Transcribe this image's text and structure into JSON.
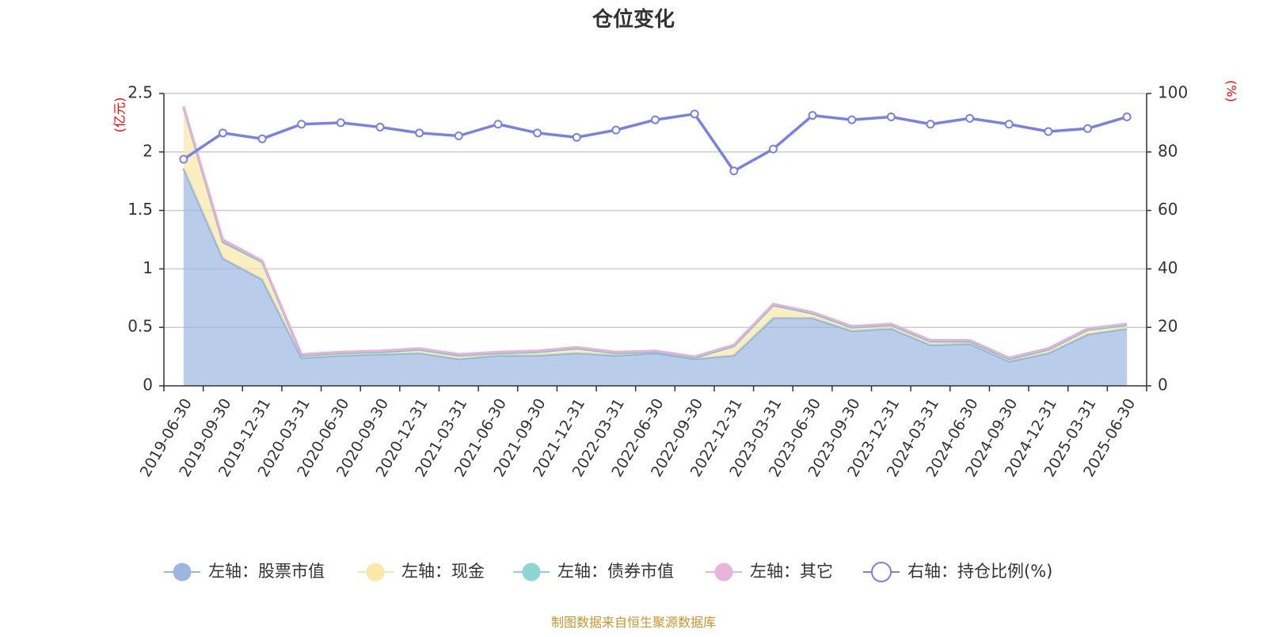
{
  "chart_data": {
    "type": "area",
    "title": "仓位变化",
    "left_axis_unit": "(亿元)",
    "right_axis_unit": "(%)",
    "left_ylim": [
      0,
      2.5
    ],
    "left_ticks": [
      "0",
      "0.5",
      "1",
      "1.5",
      "2",
      "2.5"
    ],
    "right_ylim": [
      0,
      100
    ],
    "right_ticks": [
      "0",
      "20",
      "40",
      "60",
      "80",
      "100"
    ],
    "grid": true,
    "legend_position": "bottom",
    "categories": [
      "2019-06-30",
      "2019-09-30",
      "2019-12-31",
      "2020-03-31",
      "2020-06-30",
      "2020-09-30",
      "2020-12-31",
      "2021-03-31",
      "2021-06-30",
      "2021-09-30",
      "2021-12-31",
      "2022-03-31",
      "2022-06-30",
      "2022-09-30",
      "2022-12-31",
      "2023-03-31",
      "2023-06-30",
      "2023-09-30",
      "2023-12-31",
      "2024-03-31",
      "2024-06-30",
      "2024-09-30",
      "2024-12-31",
      "2025-03-31",
      "2025-06-30"
    ],
    "series": [
      {
        "name": "左轴：股票市值",
        "axis": "left",
        "stack": true,
        "color": "#9bb7e0",
        "values": [
          1.86,
          1.09,
          0.91,
          0.24,
          0.26,
          0.27,
          0.28,
          0.23,
          0.26,
          0.26,
          0.28,
          0.26,
          0.28,
          0.23,
          0.26,
          0.58,
          0.58,
          0.47,
          0.49,
          0.35,
          0.36,
          0.21,
          0.28,
          0.44,
          0.49
        ]
      },
      {
        "name": "左轴：现金",
        "axis": "left",
        "stack": true,
        "color": "#f9e8a8",
        "values": [
          0.52,
          0.14,
          0.15,
          0.02,
          0.02,
          0.02,
          0.03,
          0.03,
          0.02,
          0.03,
          0.04,
          0.02,
          0.01,
          0.01,
          0.08,
          0.11,
          0.04,
          0.03,
          0.03,
          0.03,
          0.02,
          0.02,
          0.03,
          0.04,
          0.03
        ]
      },
      {
        "name": "左轴：债券市值",
        "axis": "left",
        "stack": true,
        "color": "#8fd3d3",
        "values": [
          0,
          0,
          0,
          0,
          0,
          0,
          0,
          0,
          0,
          0,
          0,
          0,
          0,
          0,
          0,
          0,
          0,
          0,
          0,
          0,
          0,
          0,
          0,
          0,
          0
        ]
      },
      {
        "name": "左轴：其它",
        "axis": "left",
        "stack": true,
        "color": "#e8b4da",
        "values": [
          0.01,
          0.02,
          0.01,
          0.01,
          0.01,
          0.01,
          0.01,
          0.01,
          0.01,
          0.01,
          0.01,
          0.01,
          0.01,
          0.01,
          0.01,
          0.01,
          0.01,
          0.01,
          0.01,
          0.01,
          0.01,
          0.01,
          0.01,
          0.01,
          0.01
        ]
      },
      {
        "name": "右轴：持仓比例(%)",
        "axis": "right",
        "stack": false,
        "color": "#7b7fe8",
        "values": [
          77.5,
          86.5,
          84.5,
          89.5,
          90,
          88.5,
          86.5,
          85.5,
          89.5,
          86.5,
          85,
          87.5,
          91,
          93,
          73.5,
          81,
          92.5,
          91,
          92,
          89.5,
          91.5,
          89.5,
          87,
          88,
          92
        ]
      }
    ]
  },
  "footer": {
    "source": "制图数据来自恒生聚源数据库"
  }
}
